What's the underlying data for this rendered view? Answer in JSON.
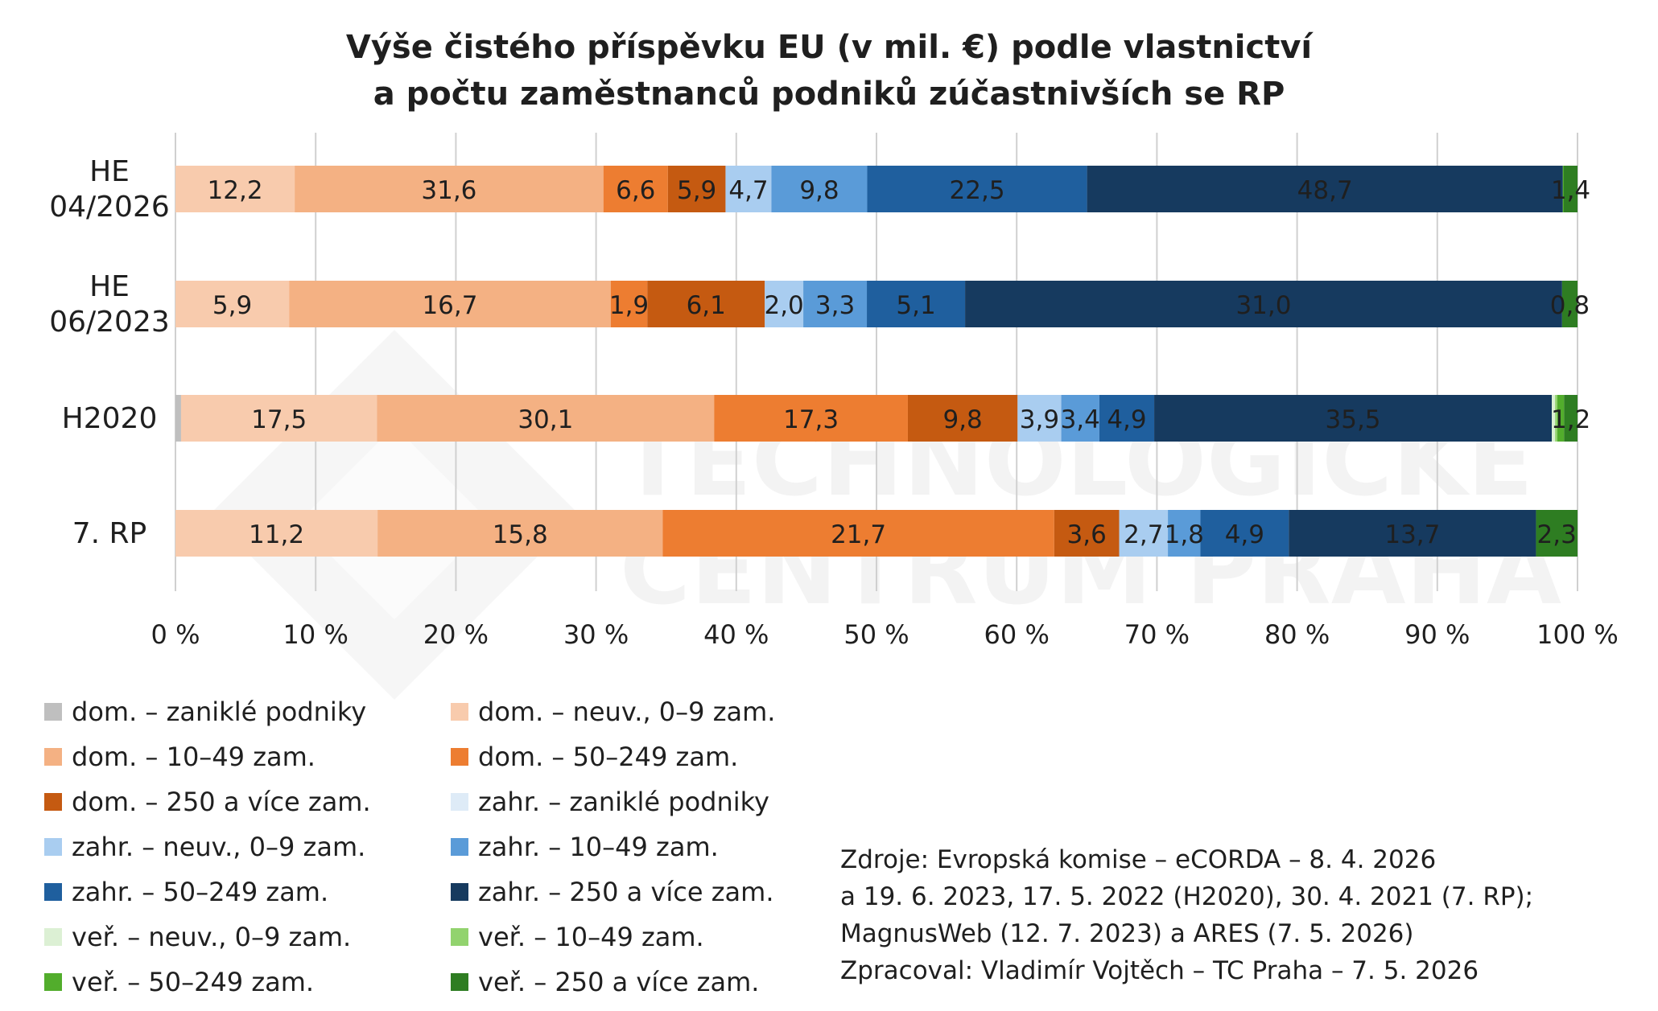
{
  "chart_data": {
    "type": "bar",
    "orientation": "horizontal",
    "stacked": "percent",
    "title": "Výše čistého příspěvku EU (v mil. €) podle vlastnictví a počtu zaměstnanců podniků zúčastnivších se RP",
    "title_lines": [
      "Výše čistého příspěvku EU (v mil. €) podle vlastnictví",
      "a počtu zaměstnanců podniků zúčastnivších se RP"
    ],
    "categories": [
      "HE\n04/2026",
      "HE\n06/2023",
      "H2020",
      "7. RP"
    ],
    "x_ticks": [
      "0 %",
      "10 %",
      "20 %",
      "30 %",
      "40 %",
      "50 %",
      "60 %",
      "70 %",
      "80 %",
      "90 %",
      "100 %"
    ],
    "xlim": [
      0,
      100
    ],
    "grid": "vertical",
    "legend_position": "bottom-left",
    "series": [
      {
        "name": "dom. – zaniklé podniky",
        "color": "#bfbfbf",
        "values": [
          0,
          0,
          0.5,
          0
        ]
      },
      {
        "name": "dom. – neuv., 0–9 zam.",
        "color": "#f8cbad",
        "values": [
          12.2,
          5.9,
          17.5,
          11.2
        ]
      },
      {
        "name": "dom. – 10–49 zam.",
        "color": "#f4b183",
        "values": [
          31.6,
          16.7,
          30.1,
          15.8
        ]
      },
      {
        "name": "dom. – 50–249 zam.",
        "color": "#ed7d31",
        "values": [
          6.6,
          1.9,
          17.3,
          21.7
        ]
      },
      {
        "name": "dom. – 250 a více zam.",
        "color": "#c55a11",
        "values": [
          5.9,
          6.1,
          9.8,
          3.6
        ]
      },
      {
        "name": "zahr. – zaniklé podniky",
        "color": "#deebf7",
        "values": [
          0,
          0,
          0,
          0
        ]
      },
      {
        "name": "zahr. – neuv., 0–9 zam.",
        "color": "#a9cdf0",
        "values": [
          4.7,
          2.0,
          3.9,
          2.7
        ]
      },
      {
        "name": "zahr. – 10–49 zam.",
        "color": "#5a9bd8",
        "values": [
          9.8,
          3.3,
          3.4,
          1.8
        ]
      },
      {
        "name": "zahr. – 50–249 zam.",
        "color": "#1f5f9e",
        "values": [
          22.5,
          5.1,
          4.9,
          4.9
        ]
      },
      {
        "name": "zahr. – 250 a více zam.",
        "color": "#163a5f",
        "values": [
          48.7,
          31.0,
          35.5,
          13.7
        ]
      },
      {
        "name": "veř. – neuv., 0–9 zam.",
        "color": "#dcf0d4",
        "values": [
          0,
          0,
          0.3,
          0
        ]
      },
      {
        "name": "veř. – 10–49 zam.",
        "color": "#92d36e",
        "values": [
          0,
          0,
          0.2,
          0
        ]
      },
      {
        "name": "veř. – 50–249 zam.",
        "color": "#52ad2c",
        "values": [
          0.1,
          0,
          0.6,
          0
        ]
      },
      {
        "name": "veř. – 250 a více zam.",
        "color": "#2e7d22",
        "values": [
          1.4,
          0.8,
          1.2,
          2.3
        ]
      }
    ],
    "data_labels": [
      [
        "12,2",
        "31,6",
        "6,6",
        "5,9",
        "4,7",
        "9,8",
        "22,5",
        "48,7",
        "1,4"
      ],
      [
        "5,9",
        "16,7",
        "1,9",
        "6,1",
        "2,0",
        "3,3",
        "5,1",
        "31,0",
        "0,8"
      ],
      [
        "17,5",
        "30,1",
        "17,3",
        "9,8",
        "3,9",
        "3,4",
        "4,9",
        "35,5",
        "1,2"
      ],
      [
        "11,2",
        "15,8",
        "21,7",
        "3,6",
        "2,7",
        "1,8",
        "4,9",
        "13,7",
        "2,3"
      ]
    ]
  },
  "source_lines": [
    "Zdroje: Evropská komise – eCORDA – 8. 4. 2026",
    "a 19. 6. 2023, 17. 5. 2022 (H2020), 30. 4. 2021 (7. RP);",
    "MagnusWeb (12. 7. 2023) a ARES (7. 5. 2026)",
    "Zpracoval: Vladimír Vojtěch – TC Praha – 7. 5. 2026"
  ],
  "watermark": [
    "TECHNOLOGICKÉ",
    "CENTRUM PRAHA"
  ]
}
